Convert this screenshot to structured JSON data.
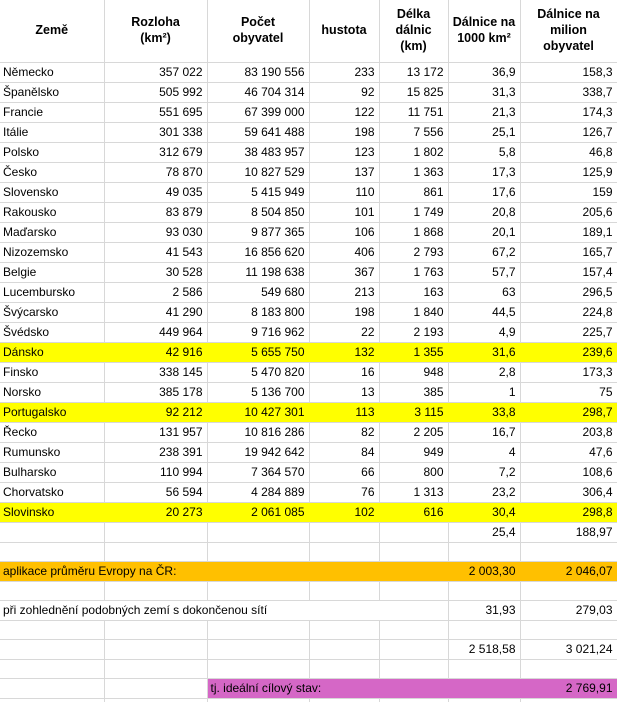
{
  "colors": {
    "highlight_yellow": "#FFFF00",
    "highlight_orange": "#FFC000",
    "highlight_pink": "#D567C6",
    "gridline": "#d8d8d8",
    "text": "#000000"
  },
  "chart_data": {
    "type": "table",
    "columns": [
      "Země",
      "Rozloha\n(km²)",
      "Počet\nobyvatel",
      "hustota",
      "Délka\ndálnic\n(km)",
      "Dálnice na\n1000 km²",
      "Dálnice na\nmilion\nobyvatel"
    ],
    "rows": [
      {
        "highlight": null,
        "cells": [
          "Německo",
          "357 022",
          "83 190 556",
          "233",
          "13 172",
          "36,9",
          "158,3"
        ]
      },
      {
        "highlight": null,
        "cells": [
          "Španělsko",
          "505 992",
          "46 704 314",
          "92",
          "15 825",
          "31,3",
          "338,7"
        ]
      },
      {
        "highlight": null,
        "cells": [
          "Francie",
          "551 695",
          "67 399 000",
          "122",
          "11 751",
          "21,3",
          "174,3"
        ]
      },
      {
        "highlight": null,
        "cells": [
          "Itálie",
          "301 338",
          "59 641 488",
          "198",
          "7 556",
          "25,1",
          "126,7"
        ]
      },
      {
        "highlight": null,
        "cells": [
          "Polsko",
          "312 679",
          "38 483 957",
          "123",
          "1 802",
          "5,8",
          "46,8"
        ]
      },
      {
        "highlight": null,
        "cells": [
          "Česko",
          "78 870",
          "10 827 529",
          "137",
          "1 363",
          "17,3",
          "125,9"
        ]
      },
      {
        "highlight": null,
        "cells": [
          "Slovensko",
          "49 035",
          "5 415 949",
          "110",
          "861",
          "17,6",
          "159"
        ]
      },
      {
        "highlight": null,
        "cells": [
          "Rakousko",
          "83 879",
          "8 504 850",
          "101",
          "1 749",
          "20,8",
          "205,6"
        ]
      },
      {
        "highlight": null,
        "cells": [
          "Maďarsko",
          "93 030",
          "9 877 365",
          "106",
          "1 868",
          "20,1",
          "189,1"
        ]
      },
      {
        "highlight": null,
        "cells": [
          "Nizozemsko",
          "41 543",
          "16 856 620",
          "406",
          "2 793",
          "67,2",
          "165,7"
        ]
      },
      {
        "highlight": null,
        "cells": [
          "Belgie",
          "30 528",
          "11 198 638",
          "367",
          "1 763",
          "57,7",
          "157,4"
        ]
      },
      {
        "highlight": null,
        "cells": [
          "Lucembursko",
          "2 586",
          "549 680",
          "213",
          "163",
          "63",
          "296,5"
        ]
      },
      {
        "highlight": null,
        "cells": [
          "Švýcarsko",
          "41 290",
          "8 183 800",
          "198",
          "1 840",
          "44,5",
          "224,8"
        ]
      },
      {
        "highlight": null,
        "cells": [
          "Švédsko",
          "449 964",
          "9 716 962",
          "22",
          "2 193",
          "4,9",
          "225,7"
        ]
      },
      {
        "highlight": "yellow",
        "cells": [
          "Dánsko",
          "42 916",
          "5 655 750",
          "132",
          "1 355",
          "31,6",
          "239,6"
        ]
      },
      {
        "highlight": null,
        "cells": [
          "Finsko",
          "338 145",
          "5 470 820",
          "16",
          "948",
          "2,8",
          "173,3"
        ]
      },
      {
        "highlight": null,
        "cells": [
          "Norsko",
          "385 178",
          "5 136 700",
          "13",
          "385",
          "1",
          "75"
        ]
      },
      {
        "highlight": "yellow",
        "cells": [
          "Portugalsko",
          "92 212",
          "10 427 301",
          "113",
          "3 115",
          "33,8",
          "298,7"
        ]
      },
      {
        "highlight": null,
        "cells": [
          "Řecko",
          "131 957",
          "10 816 286",
          "82",
          "2 205",
          "16,7",
          "203,8"
        ]
      },
      {
        "highlight": null,
        "cells": [
          "Rumunsko",
          "238 391",
          "19 942 642",
          "84",
          "949",
          "4",
          "47,6"
        ]
      },
      {
        "highlight": null,
        "cells": [
          "Bulharsko",
          "110 994",
          "7 364 570",
          "66",
          "800",
          "7,2",
          "108,6"
        ]
      },
      {
        "highlight": null,
        "cells": [
          "Chorvatsko",
          "56 594",
          "4 284 889",
          "76",
          "1 313",
          "23,2",
          "306,4"
        ]
      },
      {
        "highlight": "yellow",
        "cells": [
          "Slovinsko",
          "20 273",
          "2 061 085",
          "102",
          "616",
          "30,4",
          "298,8"
        ]
      }
    ],
    "summary_rows": [
      {
        "highlight": null,
        "cells": [
          "",
          "",
          "",
          "",
          "",
          "25,4",
          "188,97"
        ]
      },
      {
        "highlight": "orange",
        "cells": [
          "aplikace průměru Evropy na ČR:",
          "",
          "",
          "",
          "",
          "2 003,30",
          "2 046,07"
        ]
      },
      {
        "highlight": null,
        "cells": [
          "při zohlednění podobných zemí s dokončenou sítí",
          "",
          "",
          "",
          "",
          "31,93",
          "279,03"
        ]
      },
      {
        "highlight": null,
        "cells": [
          "",
          "",
          "",
          "",
          "",
          "2 518,58",
          "3 021,24"
        ]
      },
      {
        "highlight": "pink",
        "cells": [
          "",
          "",
          "tj. ideální cílový stav:",
          "",
          "",
          "",
          "2 769,91"
        ]
      }
    ]
  }
}
